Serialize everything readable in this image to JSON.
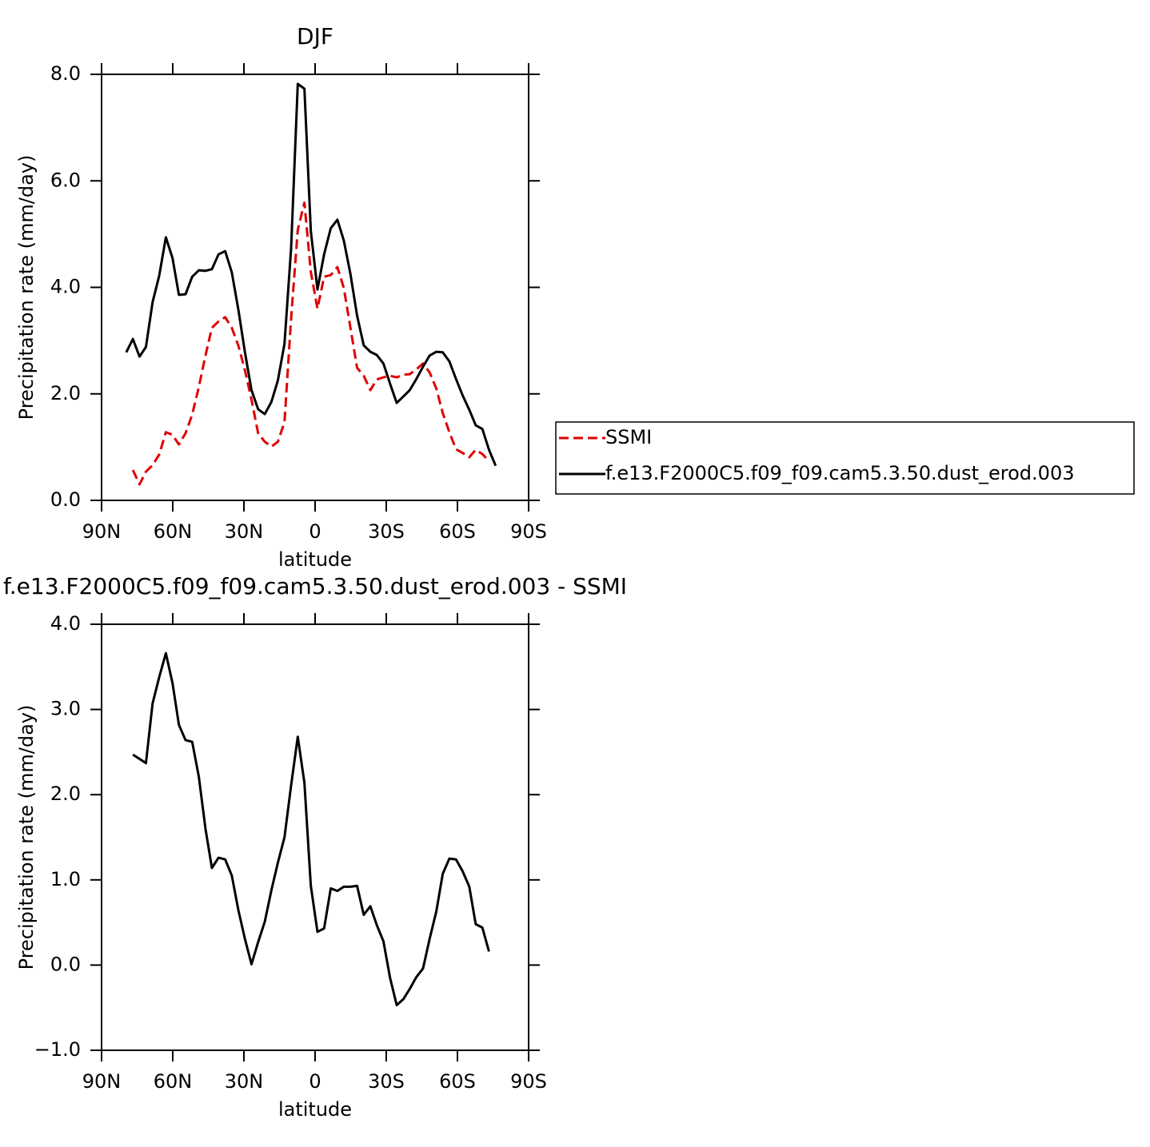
{
  "chart_data": [
    {
      "type": "line",
      "title": "DJF",
      "xlabel": "latitude",
      "ylabel": "Precipitation rate (mm/day)",
      "x": [
        79.6,
        76.8,
        74.0,
        71.3,
        68.5,
        65.7,
        62.9,
        60.1,
        57.4,
        54.6,
        51.8,
        49.0,
        46.2,
        43.5,
        40.7,
        37.9,
        35.1,
        32.3,
        29.6,
        26.8,
        24.0,
        21.2,
        18.4,
        15.7,
        12.9,
        10.1,
        7.3,
        4.5,
        1.8,
        -1.0,
        -3.8,
        -6.6,
        -9.4,
        -12.1,
        -14.9,
        -17.7,
        -20.5,
        -23.3,
        -26.0,
        -28.8,
        -31.6,
        -34.4,
        -37.2,
        -39.9,
        -42.7,
        -45.5,
        -48.3,
        -51.1,
        -53.8,
        -56.6,
        -59.4,
        -62.2,
        -65.0,
        -67.7,
        -70.5,
        -73.3,
        -76.1
      ],
      "series": [
        {
          "name": "SSMI",
          "color": "#e00000",
          "dashed": true,
          "values": [
            null,
            0.57,
            0.3,
            0.54,
            0.66,
            0.86,
            1.28,
            1.23,
            1.05,
            1.26,
            1.61,
            2.13,
            2.72,
            3.24,
            3.36,
            3.44,
            3.24,
            2.9,
            2.45,
            1.89,
            1.26,
            1.1,
            1.01,
            1.1,
            1.47,
            3.42,
            5.08,
            5.59,
            4.29,
            3.6,
            4.2,
            4.23,
            4.38,
            3.99,
            3.24,
            2.49,
            2.34,
            2.07,
            2.27,
            2.31,
            2.34,
            2.31,
            2.36,
            2.37,
            2.46,
            2.57,
            2.4,
            2.1,
            1.64,
            1.28,
            0.96,
            0.89,
            0.81,
            0.95,
            0.87,
            0.74,
            null
          ]
        },
        {
          "name": "f.e13.F2000C5.f09_f09.cam5.3.50.dust_erod.003",
          "color": "#000000",
          "dashed": false,
          "values": [
            2.78,
            3.03,
            2.7,
            2.88,
            3.72,
            4.22,
            4.94,
            4.55,
            3.86,
            3.87,
            4.2,
            4.32,
            4.31,
            4.34,
            4.62,
            4.68,
            4.28,
            3.57,
            2.79,
            2.07,
            1.71,
            1.62,
            1.85,
            2.25,
            2.94,
            4.74,
            7.82,
            7.73,
            5.06,
            3.96,
            4.62,
            5.11,
            5.27,
            4.88,
            4.25,
            3.47,
            2.91,
            2.79,
            2.73,
            2.57,
            2.19,
            1.83,
            1.95,
            2.07,
            2.28,
            2.51,
            2.72,
            2.79,
            2.78,
            2.61,
            2.28,
            1.97,
            1.7,
            1.41,
            1.34,
            0.95,
            0.65
          ]
        }
      ],
      "xlim": [
        90,
        -90
      ],
      "xticks": [
        {
          "value": 90,
          "label": "90N"
        },
        {
          "value": 60,
          "label": "60N"
        },
        {
          "value": 30,
          "label": "30N"
        },
        0,
        {
          "value": -30,
          "label": "30S"
        },
        {
          "value": -60,
          "label": "60S"
        },
        {
          "value": -90,
          "label": "90S"
        }
      ],
      "ylim": [
        0,
        8
      ],
      "yticks": [
        {
          "value": 0,
          "label": "0.0"
        },
        {
          "value": 2,
          "label": "2.0"
        },
        {
          "value": 4,
          "label": "4.0"
        },
        {
          "value": 6,
          "label": "6.0"
        },
        {
          "value": 8,
          "label": "8.0"
        }
      ],
      "legend": "outside-right"
    },
    {
      "type": "line",
      "title": "f.e13.F2000C5.f09_f09.cam5.3.50.dust_erod.003 - SSMI",
      "xlabel": "latitude",
      "ylabel": "Precipitation rate (mm/day)",
      "x": [
        76.8,
        74.0,
        71.3,
        68.5,
        65.7,
        62.9,
        60.1,
        57.4,
        54.6,
        51.8,
        49.0,
        46.2,
        43.5,
        40.7,
        37.9,
        35.1,
        32.3,
        29.6,
        26.8,
        24.0,
        21.2,
        18.4,
        15.7,
        12.9,
        10.1,
        7.3,
        4.5,
        1.8,
        -1.0,
        -3.8,
        -6.6,
        -9.4,
        -12.1,
        -14.9,
        -17.7,
        -20.5,
        -23.3,
        -26.0,
        -28.8,
        -31.6,
        -34.4,
        -37.2,
        -39.9,
        -42.7,
        -45.5,
        -48.3,
        -51.1,
        -53.8,
        -56.6,
        -59.4,
        -62.2,
        -65.0,
        -67.7,
        -70.5,
        -73.3
      ],
      "series": [
        {
          "color": "#000000",
          "dashed": false,
          "values": [
            2.47,
            2.42,
            2.37,
            3.07,
            3.38,
            3.66,
            3.31,
            2.82,
            2.64,
            2.62,
            2.21,
            1.6,
            1.14,
            1.26,
            1.24,
            1.05,
            0.64,
            0.31,
            0.01,
            0.27,
            0.51,
            0.88,
            1.2,
            1.5,
            2.11,
            2.68,
            2.14,
            0.93,
            0.39,
            0.43,
            0.9,
            0.87,
            0.92,
            0.92,
            0.93,
            0.59,
            0.69,
            0.47,
            0.28,
            -0.15,
            -0.47,
            -0.4,
            -0.28,
            -0.14,
            -0.04,
            0.31,
            0.63,
            1.07,
            1.25,
            1.24,
            1.1,
            0.92,
            0.48,
            0.44,
            0.16
          ]
        }
      ],
      "xlim": [
        90,
        -90
      ],
      "xticks": [
        {
          "value": 90,
          "label": "90N"
        },
        {
          "value": 60,
          "label": "60N"
        },
        {
          "value": 30,
          "label": "30N"
        },
        0,
        {
          "value": -30,
          "label": "30S"
        },
        {
          "value": -60,
          "label": "60S"
        },
        {
          "value": -90,
          "label": "90S"
        }
      ],
      "ylim": [
        -1,
        4
      ],
      "yticks": [
        {
          "value": -1,
          "label": "−1.0"
        },
        {
          "value": 0,
          "label": "0.0"
        },
        {
          "value": 1,
          "label": "1.0"
        },
        {
          "value": 2,
          "label": "2.0"
        },
        {
          "value": 3,
          "label": "3.0"
        },
        {
          "value": 4,
          "label": "4.0"
        }
      ]
    }
  ]
}
